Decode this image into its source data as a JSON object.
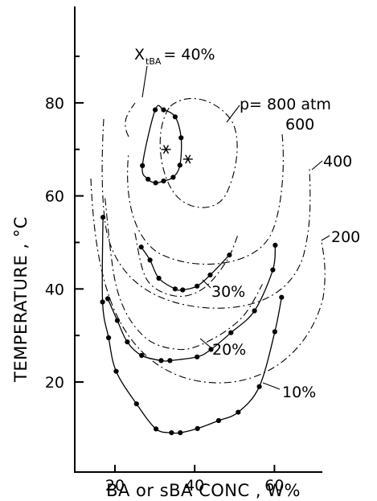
{
  "chart_data": {
    "type": "scatter",
    "title": "",
    "xlabel": "BA or sBA CONC , W%",
    "ylabel": "TEMPERATURE , °C",
    "xlim": [
      12,
      67
    ],
    "ylim": [
      5,
      100
    ],
    "x_ticks": [
      20,
      40,
      60
    ],
    "y_ticks": [
      20,
      40,
      60,
      80
    ],
    "grid": false,
    "legend": "none",
    "series": [
      {
        "name": "X_tBA = 40%",
        "style": "solid",
        "points": [
          [
            30.1,
            78.5
          ],
          [
            32.2,
            78.5
          ],
          [
            35.1,
            77.0
          ],
          [
            36.6,
            72.5
          ],
          [
            36.3,
            66.6
          ],
          [
            34.6,
            64.0
          ],
          [
            32.2,
            63.2
          ],
          [
            30.2,
            62.8
          ],
          [
            28.3,
            63.6
          ],
          [
            26.9,
            66.5
          ]
        ],
        "closed": true
      },
      {
        "name": "30%",
        "style": "solid",
        "points": [
          [
            26.6,
            49.0
          ],
          [
            28.8,
            46.2
          ],
          [
            31.0,
            42.3
          ],
          [
            35.1,
            40.0
          ],
          [
            37.0,
            39.8
          ],
          [
            40.6,
            40.6
          ],
          [
            43.9,
            43.0
          ],
          [
            48.7,
            47.3
          ]
        ]
      },
      {
        "name": "20%",
        "style": "solid",
        "points": [
          [
            18.2,
            37.9
          ],
          [
            20.6,
            33.2
          ],
          [
            23.1,
            28.6
          ],
          [
            26.7,
            25.7
          ],
          [
            31.6,
            24.6
          ],
          [
            33.8,
            24.6
          ],
          [
            40.6,
            25.4
          ],
          [
            44.1,
            27.0
          ],
          [
            49.1,
            30.6
          ],
          [
            55.0,
            35.3
          ],
          [
            59.6,
            44.1
          ],
          [
            60.2,
            49.4
          ]
        ]
      },
      {
        "name": "10%",
        "style": "solid",
        "points": [
          [
            17.0,
            55.4
          ],
          [
            16.9,
            37.2
          ],
          [
            18.4,
            29.5
          ],
          [
            20.3,
            22.3
          ],
          [
            25.4,
            15.3
          ],
          [
            30.3,
            9.9
          ],
          [
            34.2,
            9.1
          ],
          [
            36.4,
            9.1
          ],
          [
            40.7,
            10.0
          ],
          [
            46.0,
            11.7
          ],
          [
            50.9,
            13.5
          ],
          [
            56.2,
            19.0
          ],
          [
            60.1,
            30.8
          ],
          [
            61.8,
            38.2
          ]
        ]
      }
    ],
    "pressure_isobars": [
      {
        "label": "p=800 atm",
        "style": "dashed"
      },
      {
        "label": "600",
        "style": "dashed"
      },
      {
        "label": "400",
        "style": "dashed"
      },
      {
        "label": "200",
        "style": "dashed"
      }
    ],
    "markers": [
      {
        "shape": "star",
        "x": 32.8,
        "y": 70.0
      },
      {
        "shape": "star",
        "x": 38.3,
        "y": 67.9
      }
    ],
    "annotations": {
      "x_tba_prefix": "X",
      "x_tba_sub": "tBA",
      "x_tba_value": "= 40%",
      "p800": "p= 800 atm",
      "p600": "600",
      "p400": "400",
      "p200": "200",
      "c30": "30%",
      "c20": "20%",
      "c10": "10%"
    }
  }
}
